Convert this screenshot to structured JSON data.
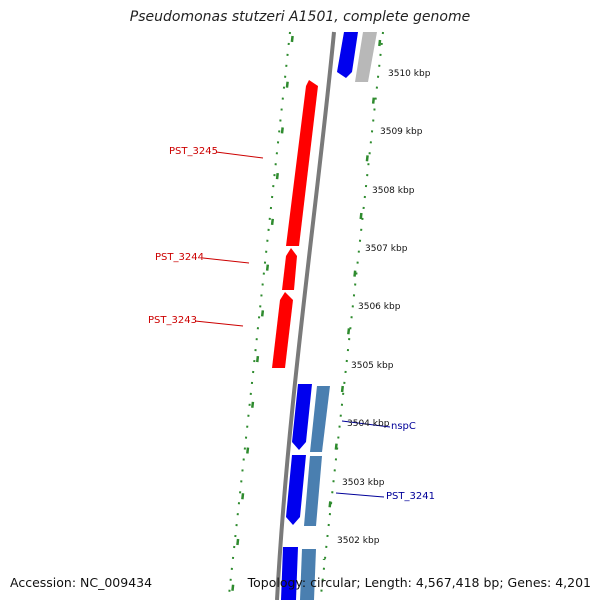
{
  "title": "Pseudomonas stutzeri A1501, complete genome",
  "accession": "Accession: NC_009434",
  "summary": "Topology: circular; Length: 4,567,418 bp; Genes: 4,201",
  "colors": {
    "backbone": "#7a7a7a",
    "tick": "#2e8b2e",
    "highlight_gene": "#ff0000",
    "gene_forward": "#0000ee",
    "gene_reverse": "#4a7fb0",
    "gene_other": "#b8b8b8",
    "gene_label_red": "#cc0000",
    "gene_label_blue": "#000099"
  },
  "scale_labels": [
    "3510 kbp",
    "3509 kbp",
    "3508 kbp",
    "3507 kbp",
    "3506 kbp",
    "3505 kbp",
    "3504 kbp",
    "3503 kbp",
    "3502 kbp"
  ],
  "gene_labels": [
    {
      "text": "PST_3245",
      "color": "red"
    },
    {
      "text": "PST_3244",
      "color": "red"
    },
    {
      "text": "PST_3243",
      "color": "red"
    },
    {
      "text": "nspC",
      "color": "blue"
    },
    {
      "text": "PST_3241",
      "color": "blue"
    }
  ]
}
